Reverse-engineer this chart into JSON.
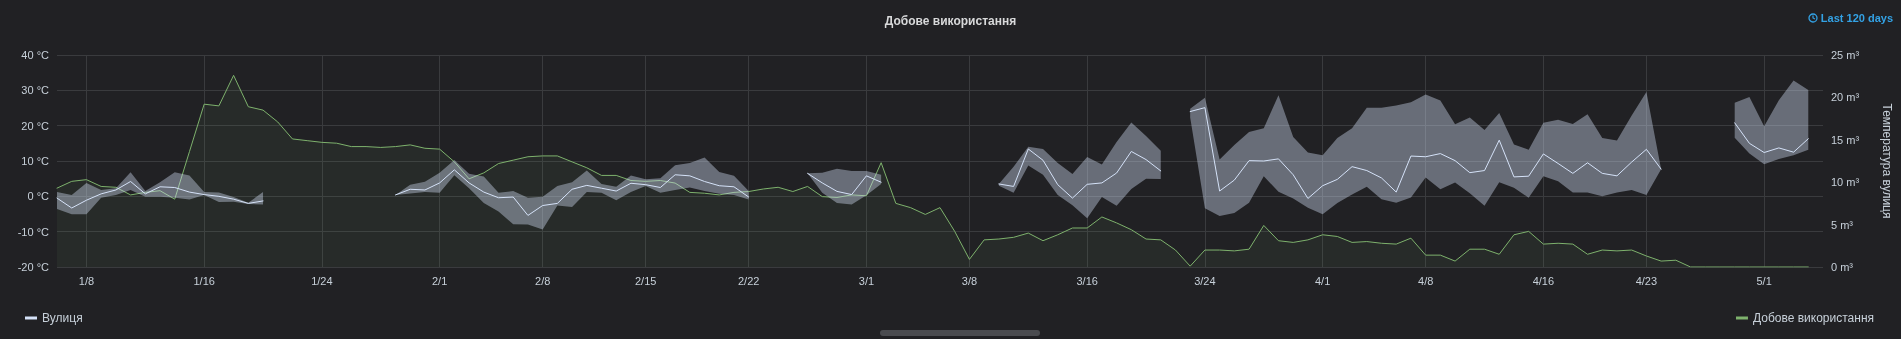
{
  "chart_data": {
    "type": "line",
    "title": "Добове використання",
    "y2label": "Температура вулиця",
    "annotations": [
      "Last 120 days"
    ],
    "x": [
      "--01-06",
      "--01-07",
      "--01-08",
      "--01-09",
      "--01-10",
      "--01-11",
      "--01-12",
      "--01-13",
      "--01-14",
      "--01-15",
      "--01-16",
      "--01-17",
      "--01-18",
      "--01-19",
      "--01-20",
      "--01-21",
      "--01-22",
      "--01-23",
      "--01-24",
      "--01-25",
      "--01-26",
      "--01-27",
      "--01-28",
      "--01-29",
      "--01-30",
      "--01-31",
      "--02-01",
      "--02-02",
      "--02-03",
      "--02-04",
      "--02-05",
      "--02-06",
      "--02-07",
      "--02-08",
      "--02-09",
      "--02-10",
      "--02-11",
      "--02-12",
      "--02-13",
      "--02-14",
      "--02-15",
      "--02-16",
      "--02-17",
      "--02-18",
      "--02-19",
      "--02-20",
      "--02-21",
      "--02-22",
      "--02-23",
      "--02-24",
      "--02-25",
      "--02-26",
      "--02-27",
      "--02-28",
      "--02-29",
      "--03-01",
      "--03-02",
      "--03-03",
      "--03-04",
      "--03-05",
      "--03-06",
      "--03-07",
      "--03-08",
      "--03-09",
      "--03-10",
      "--03-11",
      "--03-12",
      "--03-13",
      "--03-14",
      "--03-15",
      "--03-16",
      "--03-17",
      "--03-18",
      "--03-19",
      "--03-20",
      "--03-21",
      "--03-22",
      "--03-23",
      "--03-24",
      "--03-25",
      "--03-26",
      "--03-27",
      "--03-28",
      "--03-29",
      "--03-30",
      "--03-31",
      "--04-01",
      "--04-02",
      "--04-03",
      "--04-04",
      "--04-05",
      "--04-06",
      "--04-07",
      "--04-08",
      "--04-09",
      "--04-10",
      "--04-11",
      "--04-12",
      "--04-13",
      "--04-14",
      "--04-15",
      "--04-16",
      "--04-17",
      "--04-18",
      "--04-19",
      "--04-20",
      "--04-21",
      "--04-22",
      "--04-23",
      "--04-24",
      "--04-25",
      "--04-26",
      "--04-27",
      "--04-28",
      "--04-29",
      "--04-30",
      "--05-01",
      "--05-02",
      "--05-03",
      "--05-04"
    ],
    "series": [
      {
        "name": "Вулиця",
        "color": "#d5e2f8",
        "values": [
          -0.5,
          -3.3,
          -1.1,
          0.7,
          1.8,
          4.2,
          0.7,
          2.7,
          2.5,
          1.2,
          0.5,
          0.0,
          -0.8,
          -2.0,
          -1.3,
          null,
          null,
          null,
          null,
          null,
          null,
          null,
          null,
          0.4,
          2.0,
          1.8,
          3.8,
          7.5,
          3.8,
          1.2,
          -0.4,
          -0.2,
          -5.4,
          -2.6,
          -2.0,
          2.0,
          3.1,
          2.3,
          1.5,
          3.7,
          3.3,
          2.5,
          6.1,
          5.8,
          4.2,
          3.0,
          2.7,
          -0.2,
          null,
          null,
          null,
          6.5,
          3.8,
          1.4,
          0.5,
          5.8,
          4.0,
          null,
          null,
          null,
          null,
          null,
          null,
          null,
          3.5,
          2.8,
          13.4,
          10.2,
          3.3,
          -0.5,
          3.4,
          3.8,
          6.6,
          12.7,
          10.4,
          7.2,
          null,
          24.0,
          25.1,
          1.5,
          4.6,
          10.1,
          10.0,
          10.6,
          6.1,
          -0.6,
          3.0,
          4.8,
          8.4,
          7.3,
          5.2,
          1.2,
          11.4,
          11.2,
          12.1,
          10.1,
          6.7,
          7.3,
          15.9,
          5.5,
          5.7,
          12.0,
          9.3,
          6.5,
          9.5,
          6.5,
          5.8,
          9.7,
          13.3,
          7.7,
          null,
          null,
          null,
          null,
          20.8,
          15.0,
          12.4,
          13.7,
          12.5,
          16.3
        ],
        "upper": [
          1.2,
          0.4,
          3.8,
          1.8,
          2.3,
          6.8,
          1.5,
          4.0,
          6.8,
          5.9,
          1.2,
          1.1,
          -0.2,
          -1.8,
          1.2,
          null,
          null,
          null,
          null,
          null,
          null,
          null,
          null,
          0.4,
          3.3,
          4.1,
          6.7,
          10.3,
          6.4,
          5.6,
          1.0,
          1.5,
          -0.4,
          -0.1,
          2.9,
          4.0,
          7.3,
          3.5,
          2.7,
          5.9,
          4.8,
          5.1,
          8.8,
          9.4,
          11.0,
          6.9,
          5.8,
          1.5,
          null,
          null,
          null,
          6.5,
          6.7,
          7.8,
          7.2,
          7.2,
          6.1,
          null,
          null,
          null,
          null,
          null,
          null,
          null,
          3.5,
          8.4,
          14.0,
          13.4,
          9.4,
          6.3,
          11.1,
          9.0,
          15.4,
          20.9,
          17.1,
          12.9,
          null,
          24.8,
          27.9,
          10.4,
          14.5,
          18.2,
          19.3,
          28.6,
          16.8,
          12.4,
          11.6,
          16.5,
          19.3,
          25.1,
          25.1,
          25.7,
          26.6,
          28.8,
          27.1,
          20.4,
          22.3,
          18.8,
          23.6,
          14.7,
          13.2,
          20.8,
          21.7,
          20.5,
          23.2,
          16.5,
          15.8,
          22.9,
          29.5,
          7.7,
          null,
          null,
          null,
          null,
          26.5,
          28.1,
          19.8,
          27.2,
          32.8,
          30.1
        ],
        "lower": [
          -3.6,
          -5.1,
          -5.1,
          -0.4,
          0.4,
          1.8,
          -0.1,
          -0.1,
          -0.4,
          -0.9,
          0.4,
          -1.6,
          -1.5,
          -2.2,
          -2.3,
          null,
          null,
          null,
          null,
          null,
          null,
          null,
          null,
          0.4,
          0.8,
          1.2,
          1.0,
          6.0,
          2.3,
          -1.9,
          -4.3,
          -7.9,
          -8.0,
          -9.4,
          -2.6,
          -3.0,
          1.2,
          1.0,
          -1.1,
          1.2,
          2.9,
          1.0,
          1.8,
          2.5,
          1.5,
          0.7,
          0.4,
          -0.9,
          null,
          null,
          null,
          6.5,
          1.0,
          -1.9,
          -2.3,
          0.3,
          3.5,
          null,
          null,
          null,
          null,
          null,
          null,
          null,
          3.0,
          1.0,
          8.7,
          6.1,
          0.4,
          -2.5,
          -6.2,
          -0.2,
          -2.7,
          2.1,
          5.0,
          4.9,
          null,
          22.3,
          -3.4,
          -5.6,
          -4.7,
          -1.8,
          5.7,
          1.3,
          -0.6,
          -3.2,
          -5.1,
          -1.9,
          0.5,
          2.7,
          -0.8,
          -1.8,
          -0.3,
          5.3,
          2.0,
          3.9,
          0.9,
          -2.7,
          4.0,
          2.4,
          -0.4,
          5.7,
          4.3,
          1.1,
          1.1,
          0.0,
          1.1,
          1.8,
          0.4,
          7.7,
          null,
          null,
          null,
          null,
          16.6,
          12.1,
          9.1,
          10.6,
          11.6,
          13.2
        ]
      },
      {
        "name": "Добове використання",
        "type": "area",
        "axis": "y2",
        "color": "#7eb26d",
        "values": [
          9.3,
          10.1,
          10.3,
          9.5,
          9.4,
          8.5,
          8.8,
          9.0,
          8.0,
          13.6,
          19.2,
          19.0,
          22.6,
          18.9,
          18.5,
          17.1,
          15.1,
          14.9,
          14.7,
          14.6,
          14.2,
          14.2,
          14.1,
          14.2,
          14.4,
          14.0,
          13.9,
          12.4,
          10.4,
          11.1,
          12.2,
          12.6,
          13.0,
          13.1,
          13.1,
          12.4,
          11.7,
          10.8,
          10.8,
          10.2,
          10.1,
          10.2,
          9.9,
          8.8,
          8.7,
          8.5,
          8.8,
          8.9,
          9.2,
          9.4,
          8.9,
          9.5,
          8.3,
          8.2,
          8.5,
          8.4,
          12.3,
          7.5,
          7.0,
          6.2,
          7.0,
          4.2,
          0.9,
          3.2,
          3.3,
          3.5,
          4.0,
          3.1,
          3.8,
          4.6,
          4.6,
          5.9,
          5.2,
          4.4,
          3.3,
          3.2,
          2.0,
          0.1,
          2.0,
          2.0,
          1.9,
          2.1,
          4.9,
          3.1,
          2.9,
          3.2,
          3.8,
          3.6,
          2.9,
          3.0,
          2.8,
          2.7,
          3.4,
          1.4,
          1.4,
          0.7,
          2.1,
          2.1,
          1.5,
          3.8,
          4.2,
          2.7,
          2.8,
          2.7,
          1.5,
          2.0,
          1.9,
          2.0,
          1.3,
          0.7,
          0.8,
          0,
          0,
          0,
          0,
          0,
          0,
          0,
          0,
          0
        ]
      }
    ],
    "xlim": [
      "--01-06",
      "--05-05"
    ],
    "xticks": [
      {
        "value": "--01-08",
        "label": "1/8"
      },
      {
        "value": "--01-16",
        "label": "1/16"
      },
      {
        "value": "--01-24",
        "label": "1/24"
      },
      {
        "value": "--02-01",
        "label": "2/1"
      },
      {
        "value": "--02-08",
        "label": "2/8"
      },
      {
        "value": "--02-15",
        "label": "2/15"
      },
      {
        "value": "--02-22",
        "label": "2/22"
      },
      {
        "value": "--03-01",
        "label": "3/1"
      },
      {
        "value": "--03-08",
        "label": "3/8"
      },
      {
        "value": "--03-16",
        "label": "3/16"
      },
      {
        "value": "--03-24",
        "label": "3/24"
      },
      {
        "value": "--04-01",
        "label": "4/1"
      },
      {
        "value": "--04-08",
        "label": "4/8"
      },
      {
        "value": "--04-16",
        "label": "4/16"
      },
      {
        "value": "--04-23",
        "label": "4/23"
      },
      {
        "value": "--05-01",
        "label": "5/1"
      }
    ],
    "ylim": [
      -20,
      40
    ],
    "yticks": [
      {
        "value": -20,
        "label": "-20 °C"
      },
      {
        "value": -10,
        "label": "-10 °C"
      },
      {
        "value": 0,
        "label": "0 °C"
      },
      {
        "value": 10,
        "label": "10 °C"
      },
      {
        "value": 20,
        "label": "20 °C"
      },
      {
        "value": 30,
        "label": "30 °C"
      },
      {
        "value": 40,
        "label": "40 °C"
      }
    ],
    "y2lim": [
      0,
      25
    ],
    "y2ticks": [
      {
        "value": 0,
        "label": "0 m³"
      },
      {
        "value": 5,
        "label": "5 m³"
      },
      {
        "value": 10,
        "label": "10 m³"
      },
      {
        "value": 15,
        "label": "15 m³"
      },
      {
        "value": 20,
        "label": "20 m³"
      },
      {
        "value": 25,
        "label": "25 m³"
      }
    ],
    "grid": true,
    "legend": "bottom",
    "marker": "none",
    "line_style": "solid"
  }
}
